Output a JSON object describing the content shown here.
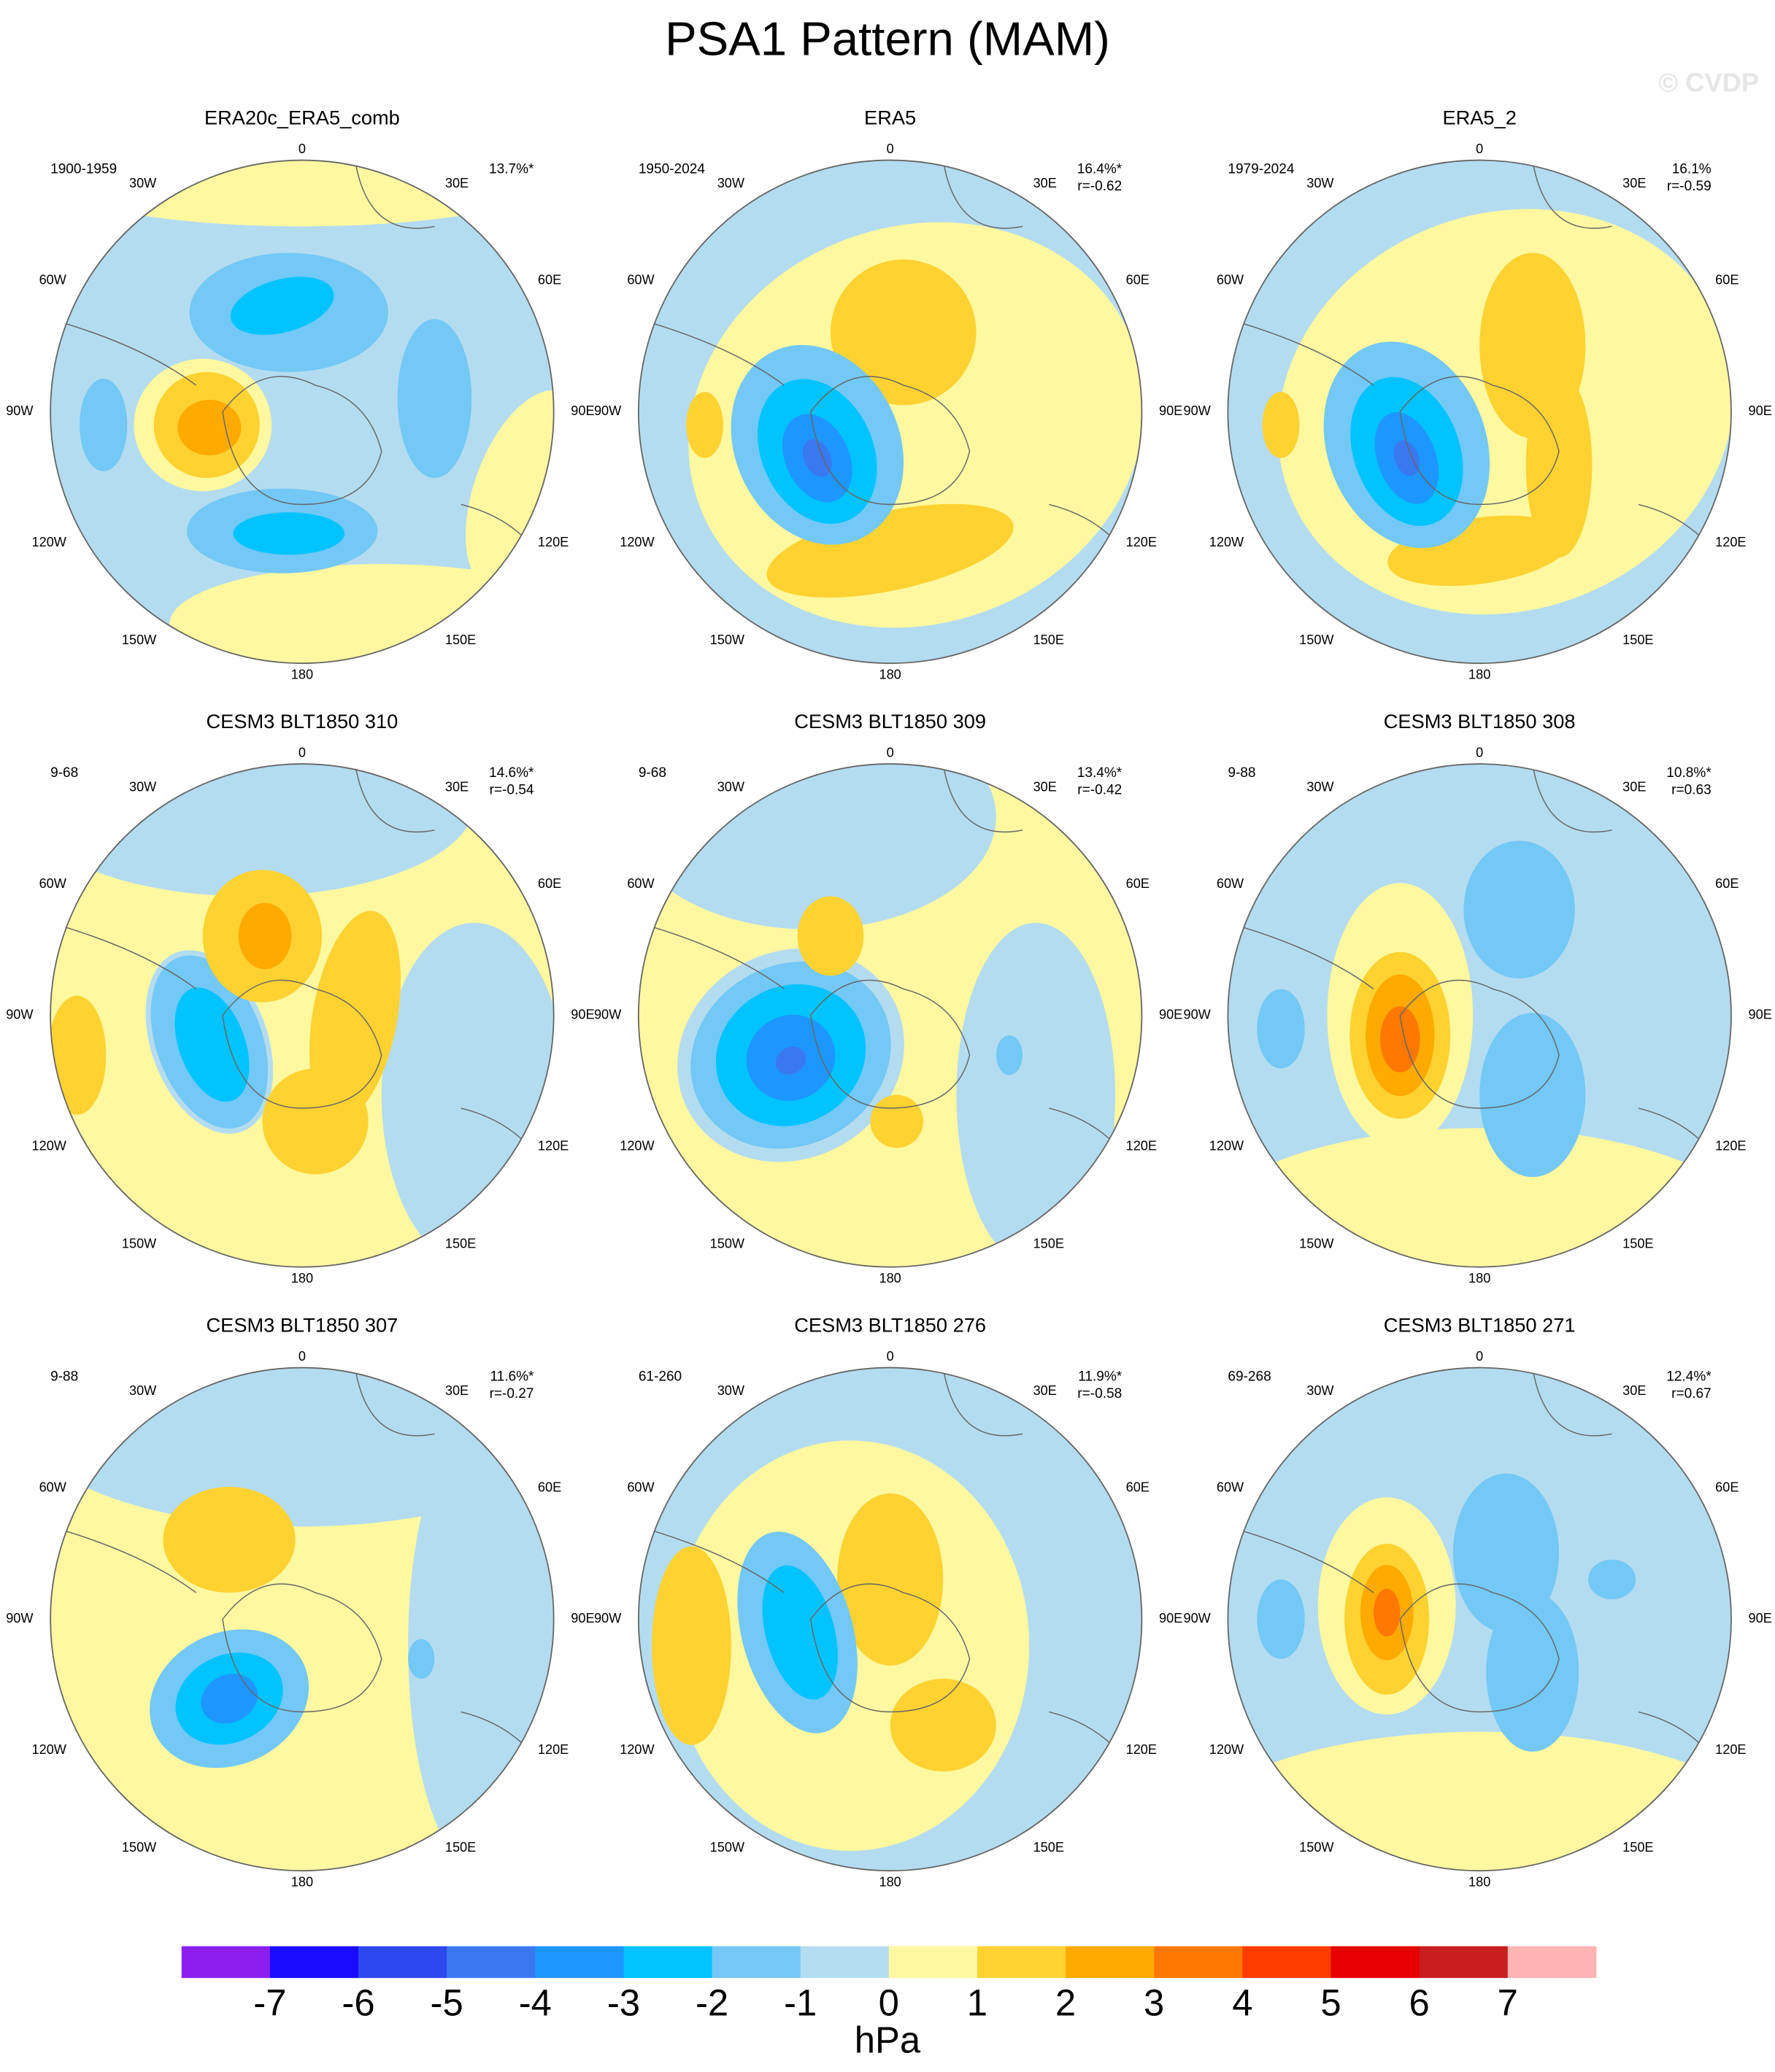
{
  "title": "PSA1 Pattern (MAM)",
  "watermark": "© CVDP",
  "lon_labels": [
    "0",
    "30W",
    "30E",
    "60W",
    "60E",
    "90W",
    "90E",
    "120W",
    "120E",
    "150W",
    "150E",
    "180"
  ],
  "panels": [
    {
      "title": "ERA20c_ERA5_comb",
      "period": "1900-1959",
      "pct": "13.7%*"
    },
    {
      "title": "ERA5",
      "period": "1950-2024",
      "pct": "16.4%*",
      "r": "r=-0.62"
    },
    {
      "title": "ERA5_2",
      "period": "1979-2024",
      "pct": "16.1%",
      "r": "r=-0.59"
    },
    {
      "title": "CESM3 BLT1850 310",
      "period": "9-68",
      "pct": "14.6%*",
      "r": "r=-0.54"
    },
    {
      "title": "CESM3 BLT1850 309",
      "period": "9-68",
      "pct": "13.4%*",
      "r": "r=-0.42"
    },
    {
      "title": "CESM3 BLT1850 308",
      "period": "9-88",
      "pct": "10.8%*",
      "r": "r=0.63"
    },
    {
      "title": "CESM3 BLT1850 307",
      "period": "9-88",
      "pct": "11.6%*",
      "r": "r=-0.27"
    },
    {
      "title": "CESM3 BLT1850 276",
      "period": "61-260",
      "pct": "11.9%*",
      "r": "r=-0.58"
    },
    {
      "title": "CESM3 BLT1850 271",
      "period": "69-268",
      "pct": "12.4%*",
      "r": "r=0.67"
    }
  ],
  "colorbar": {
    "levels": [
      -7,
      -6,
      -5,
      -4,
      -3,
      -2,
      -1,
      0,
      1,
      2,
      3,
      4,
      5,
      6,
      7
    ],
    "colors": [
      "#8c1ef0",
      "#1a0dff",
      "#2e48f0",
      "#3a78f0",
      "#1e96ff",
      "#00c3ff",
      "#73c8f5",
      "#b4dcf0",
      "#fff8a0",
      "#ffd232",
      "#ffaa00",
      "#ff7800",
      "#ff3c00",
      "#e60000",
      "#c81e1e",
      "#ffb4b4"
    ],
    "unit": "hPa"
  }
}
